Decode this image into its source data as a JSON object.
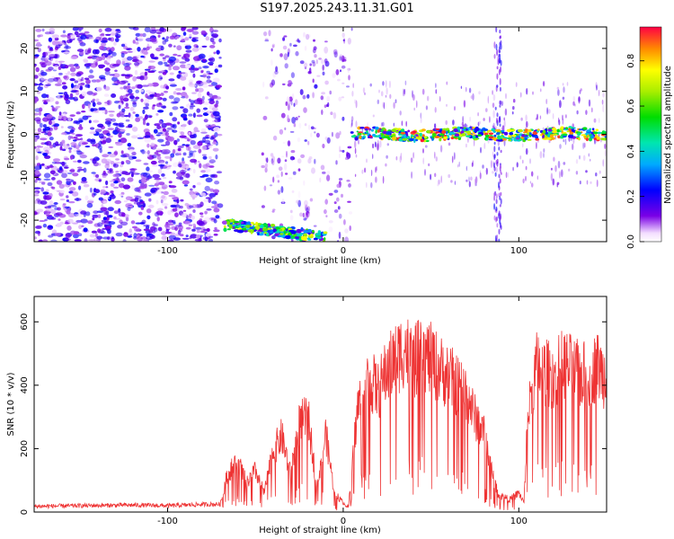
{
  "chart_data": [
    {
      "type": "heatmap",
      "title": "S197.2025.243.11.31.G01",
      "xlabel": "Height of straight line (km)",
      "ylabel": "Frequency (Hz)",
      "xlim": [
        -176,
        150
      ],
      "ylim": [
        -25,
        25
      ],
      "xticks": [
        -100,
        0,
        100
      ],
      "xtick_labels": [
        "-100",
        "0",
        "100"
      ],
      "yticks": [
        -20,
        -10,
        0,
        10,
        20
      ],
      "ytick_labels": [
        "-20",
        "-10",
        "0",
        "10",
        "20"
      ],
      "colorbar": {
        "label": "Normalized spectral amplitude",
        "range": [
          0,
          0.95
        ],
        "ticks": [
          0,
          0.2,
          0.4,
          0.6,
          0.8
        ],
        "tick_labels": [
          "0.0",
          "0.2",
          "0.4",
          "0.6",
          "0.8"
        ],
        "colormap": "rainbow-white"
      },
      "features": [
        {
          "name": "scattered noise",
          "x": [
            -176,
            -70
          ],
          "freq": [
            -25,
            25
          ],
          "amplitude": 0.2
        },
        {
          "name": "empty region",
          "x": [
            -70,
            -46
          ],
          "freq": [
            -25,
            25
          ],
          "amplitude": 0.0
        },
        {
          "name": "low-frequency trace",
          "x": [
            -68,
            -10
          ],
          "freq": [
            -25,
            -20
          ],
          "amplitude": 0.7
        },
        {
          "name": "dense trace near 0 Hz",
          "x": [
            5,
            150
          ],
          "freq": [
            -1,
            1
          ],
          "amplitude": 0.85
        }
      ]
    },
    {
      "type": "line",
      "title": "",
      "xlabel": "Height of straight line (km)",
      "ylabel": "SNR (10 * v/v)",
      "xlim": [
        -176,
        150
      ],
      "ylim": [
        0,
        680
      ],
      "xticks": [
        -100,
        0,
        100
      ],
      "xtick_labels": [
        "-100",
        "0",
        "100"
      ],
      "yticks": [
        0,
        200,
        400,
        600
      ],
      "ytick_labels": [
        "0",
        "200",
        "400",
        "600"
      ],
      "line_color": "#ee3333",
      "series": [
        {
          "x": [
            -176,
            -150,
            -120,
            -100,
            -80,
            -70,
            -66,
            -60,
            -55,
            -50,
            -45,
            -40,
            -35,
            -30,
            -25,
            -20,
            -15,
            -10,
            -5,
            0,
            3,
            6,
            8,
            10,
            15,
            20,
            25,
            30,
            35,
            40,
            45,
            50,
            55,
            60,
            65,
            70,
            75,
            80,
            85,
            88,
            90,
            95,
            100,
            103,
            105,
            110,
            115,
            120,
            125,
            130,
            135,
            140,
            145,
            150
          ],
          "y": [
            18,
            20,
            22,
            20,
            24,
            25,
            120,
            160,
            90,
            130,
            60,
            190,
            240,
            120,
            280,
            300,
            80,
            250,
            60,
            30,
            15,
            200,
            320,
            360,
            420,
            380,
            450,
            480,
            520,
            470,
            500,
            480,
            450,
            430,
            400,
            380,
            300,
            250,
            120,
            60,
            50,
            40,
            60,
            30,
            300,
            460,
            440,
            430,
            470,
            450,
            430,
            440,
            460,
            420
          ]
        }
      ]
    }
  ]
}
